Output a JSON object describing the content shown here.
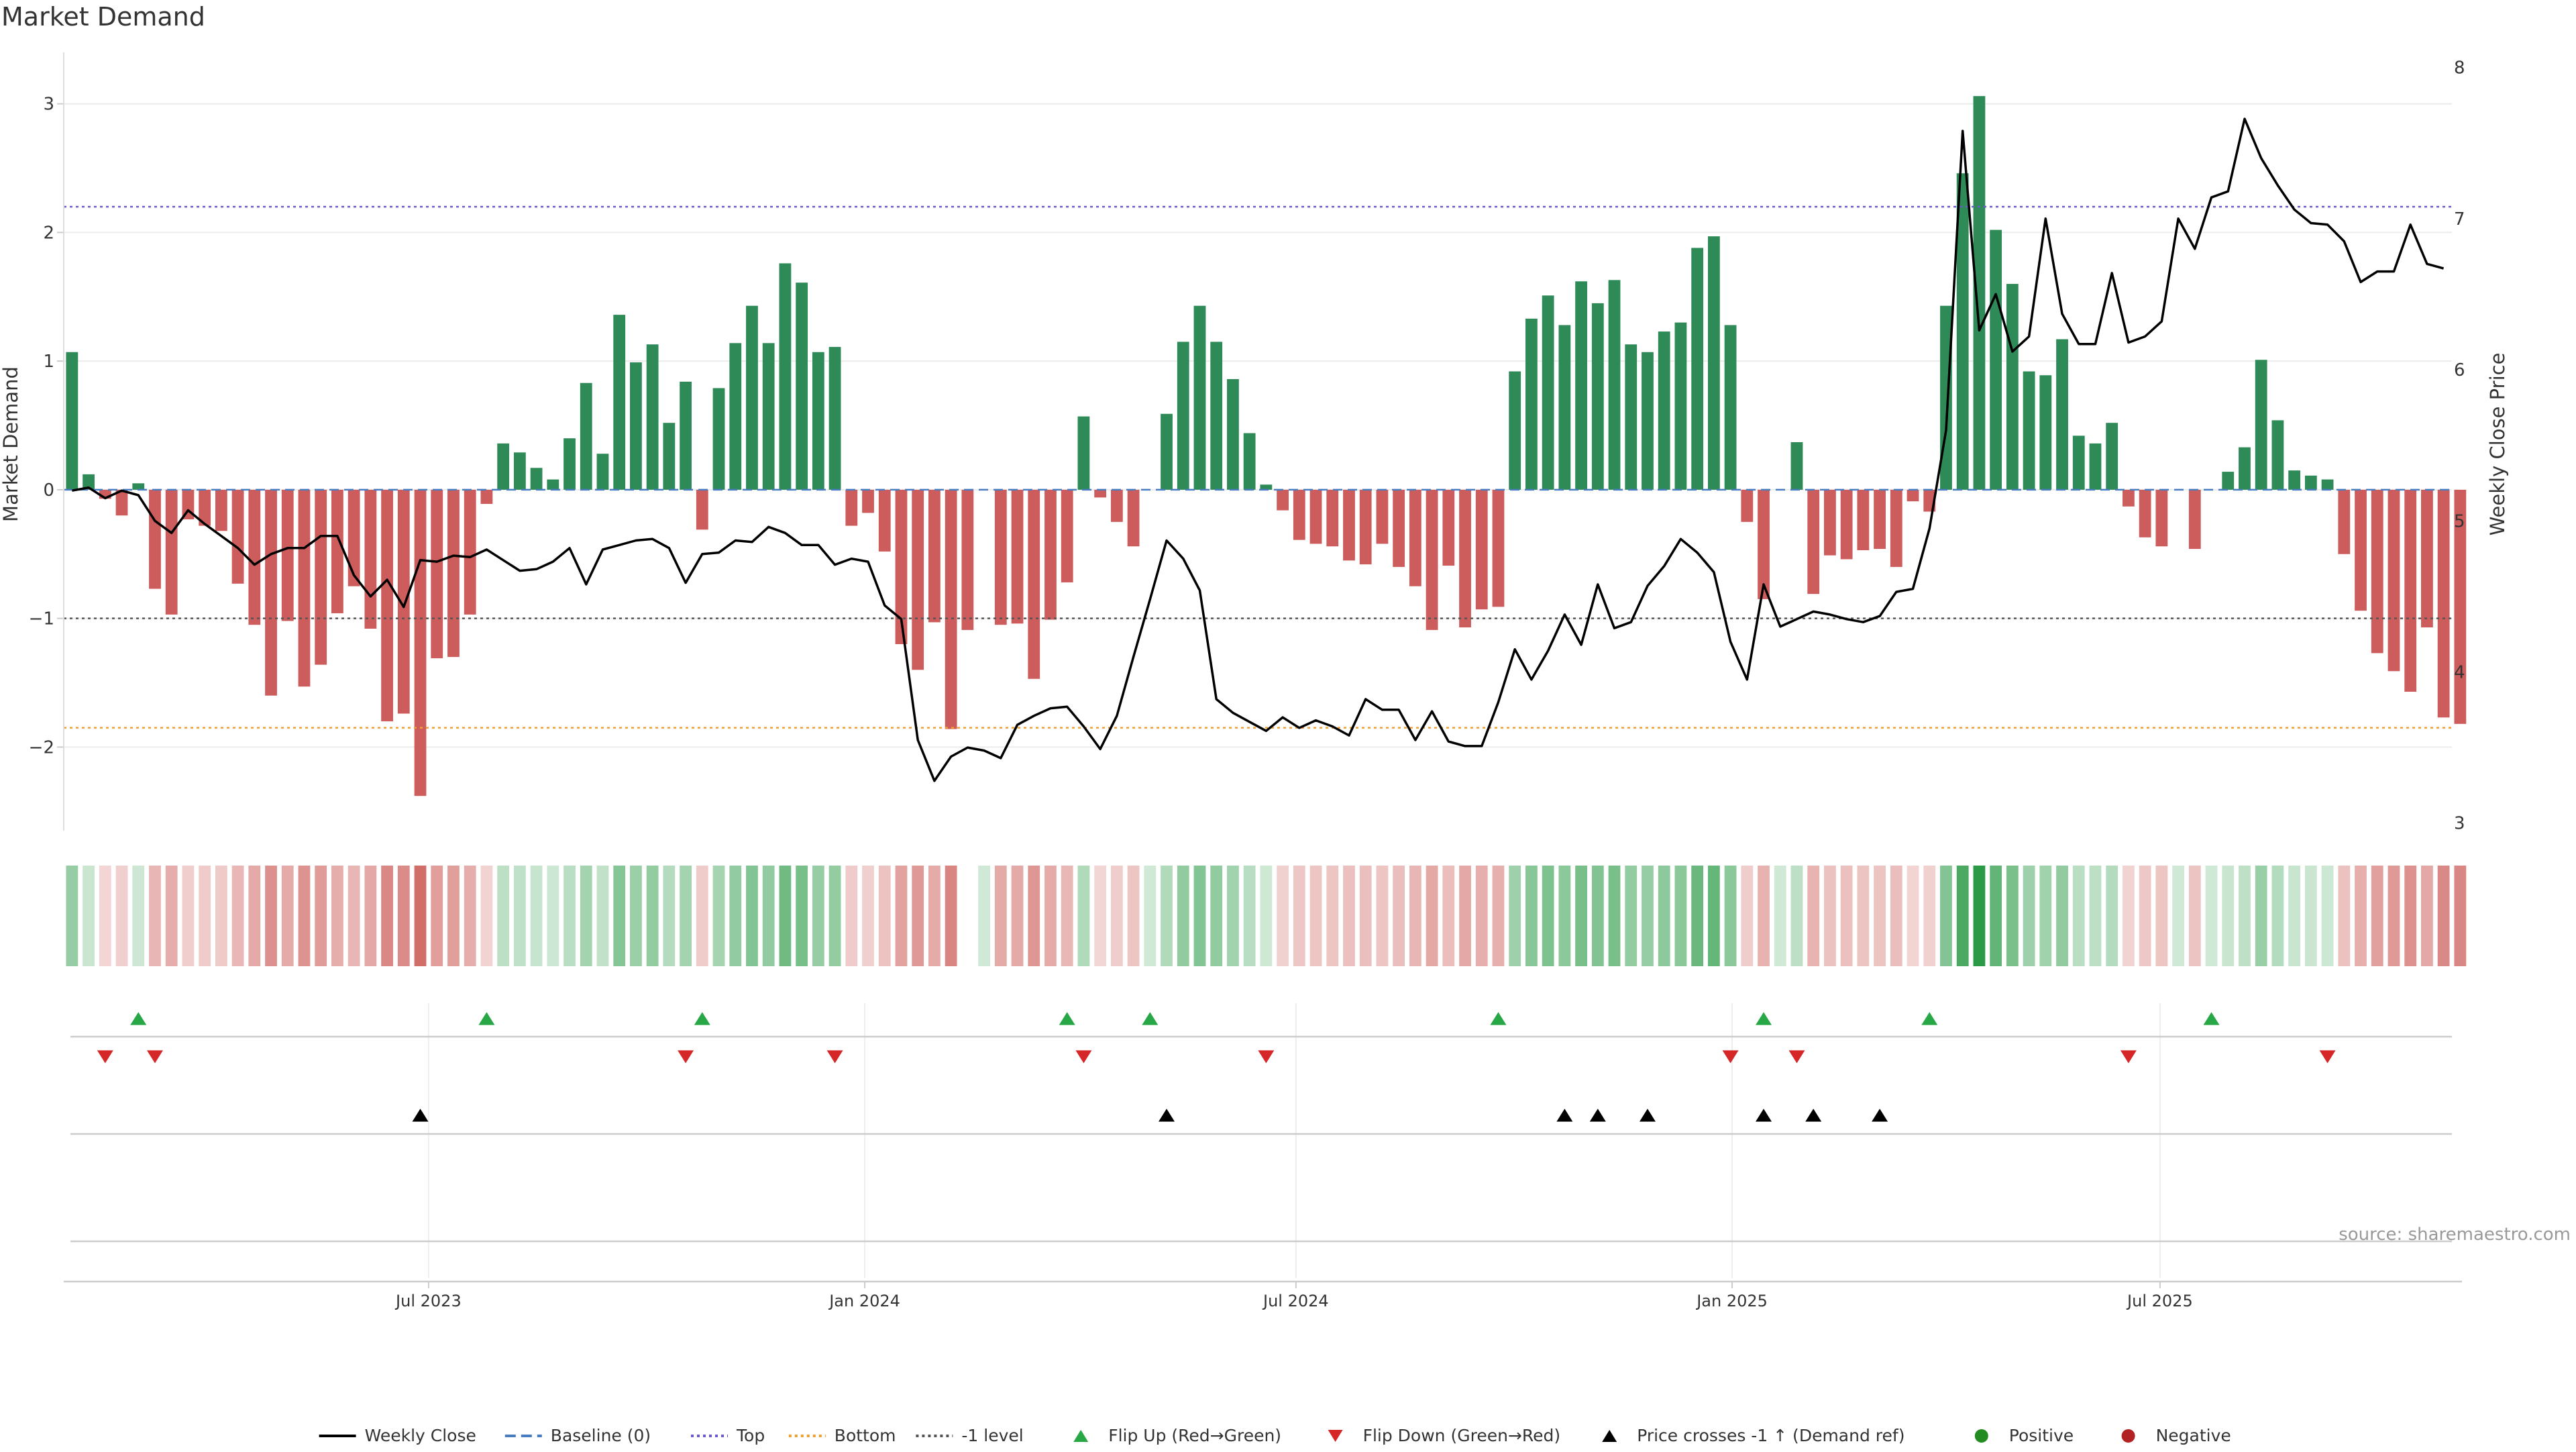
{
  "chart_data": {
    "type": "bar+line",
    "title": "Market Demand",
    "ylabel_left": "Market Demand",
    "ylabel_right": "Weekly Close Price",
    "ylim_left": [
      -2.65,
      3.4
    ],
    "ylim_right": [
      2.95,
      8.1
    ],
    "yticks_left": [
      {
        "value": -2,
        "label": "−2"
      },
      {
        "value": -1,
        "label": "−1"
      },
      {
        "value": 0,
        "label": "0"
      },
      {
        "value": 1,
        "label": "1"
      },
      {
        "value": 2,
        "label": "2"
      },
      {
        "value": 3,
        "label": "3"
      }
    ],
    "yticks_right": [
      {
        "value": 3,
        "label": "3"
      },
      {
        "value": 4,
        "label": "4"
      },
      {
        "value": 5,
        "label": "5"
      },
      {
        "value": 6,
        "label": "6"
      },
      {
        "value": 7,
        "label": "7"
      },
      {
        "value": 8,
        "label": "8"
      }
    ],
    "x_range_weeks": [
      0,
      144
    ],
    "x_ticks": [
      {
        "week": 22,
        "label": "Jul 2023"
      },
      {
        "week": 48.3,
        "label": "Jan 2024"
      },
      {
        "week": 74.3,
        "label": "Jul 2024"
      },
      {
        "week": 100.6,
        "label": "Jan 2025"
      },
      {
        "week": 126.4,
        "label": "Jul 2025"
      }
    ],
    "reference_lines": [
      {
        "name": "Top",
        "value": 2.2,
        "color": "#6a5acd"
      },
      {
        "name": "Bottom",
        "value": -1.85,
        "color": "#f0a030"
      },
      {
        "name": "-1 level",
        "value": -1.0,
        "color": "#555555"
      },
      {
        "name": "Baseline (0)",
        "value": 0,
        "color": "#4a7cc0"
      }
    ],
    "demand": [
      1.07,
      0.12,
      -0.07,
      -0.2,
      0.05,
      -0.77,
      -0.97,
      -0.23,
      -0.28,
      -0.32,
      -0.73,
      -1.05,
      -1.6,
      -1.02,
      -1.53,
      -1.36,
      -0.96,
      -0.75,
      -1.08,
      -1.8,
      -1.74,
      -2.38,
      -1.31,
      -1.3,
      -0.97,
      -0.11,
      0.36,
      0.29,
      0.17,
      0.08,
      0.4,
      0.83,
      0.28,
      1.36,
      0.99,
      1.13,
      0.52,
      0.84,
      -0.31,
      0.79,
      1.14,
      1.43,
      1.14,
      1.76,
      1.61,
      1.07,
      1.11,
      -0.28,
      -0.18,
      -0.48,
      -1.2,
      -1.4,
      -1.03,
      -1.86,
      -1.09,
      0,
      -1.05,
      -1.04,
      -1.47,
      -1.01,
      -0.72,
      0.57,
      -0.06,
      -0.25,
      -0.44,
      0,
      0.59,
      1.15,
      1.43,
      1.15,
      0.86,
      0.44,
      0.04,
      -0.16,
      -0.39,
      -0.42,
      -0.44,
      -0.55,
      -0.58,
      -0.42,
      -0.6,
      -0.75,
      -1.09,
      -0.59,
      -1.07,
      -0.93,
      -0.91,
      0.92,
      1.33,
      1.51,
      1.28,
      1.62,
      1.45,
      1.63,
      1.13,
      1.07,
      1.23,
      1.3,
      1.88,
      1.97,
      1.28,
      -0.25,
      -0.85,
      0,
      0.37,
      -0.81,
      -0.51,
      -0.54,
      -0.47,
      -0.46,
      -0.6,
      -0.09,
      -0.17,
      1.43,
      2.46,
      3.06,
      2.02,
      1.6,
      0.92,
      0.89,
      1.17,
      0.42,
      0.36,
      0.52,
      -0.13,
      -0.37,
      -0.44,
      0,
      -0.46,
      0,
      0.14,
      0.33,
      1.01,
      0.54,
      0.15,
      0.11,
      0.08,
      -0.5,
      -0.94,
      -1.27,
      -1.41,
      -1.57,
      -1.07,
      -1.77,
      -1.82
    ],
    "close": [
      5.2,
      5.22,
      5.15,
      5.2,
      5.17,
      5.0,
      4.92,
      5.07,
      4.98,
      4.9,
      4.82,
      4.71,
      4.78,
      4.82,
      4.82,
      4.9,
      4.9,
      4.64,
      4.5,
      4.61,
      4.43,
      4.74,
      4.73,
      4.77,
      4.76,
      4.81,
      4.74,
      4.67,
      4.68,
      4.73,
      4.82,
      4.58,
      4.81,
      4.84,
      4.87,
      4.88,
      4.82,
      4.59,
      4.78,
      4.79,
      4.87,
      4.86,
      4.96,
      4.92,
      4.84,
      4.84,
      4.71,
      4.75,
      4.73,
      4.44,
      4.35,
      3.55,
      3.28,
      3.44,
      3.5,
      3.48,
      3.43,
      3.65,
      3.71,
      3.76,
      3.77,
      3.64,
      3.49,
      3.71,
      4.1,
      4.48,
      4.87,
      4.75,
      4.54,
      3.82,
      3.73,
      3.67,
      3.61,
      3.7,
      3.63,
      3.68,
      3.64,
      3.58,
      3.82,
      3.75,
      3.75,
      3.55,
      3.74,
      3.54,
      3.51,
      3.51,
      3.8,
      4.15,
      3.95,
      4.14,
      4.38,
      4.18,
      4.58,
      4.29,
      4.33,
      4.57,
      4.7,
      4.88,
      4.79,
      4.66,
      4.2,
      3.95,
      4.58,
      4.3,
      4.35,
      4.4,
      4.38,
      4.35,
      4.33,
      4.37,
      4.53,
      4.55,
      4.95,
      5.6,
      7.58,
      6.26,
      6.5,
      6.12,
      6.22,
      7.0,
      6.37,
      6.17,
      6.17,
      6.64,
      6.18,
      6.22,
      6.32,
      7.0,
      6.8,
      7.14,
      7.18,
      7.66,
      7.4,
      7.22,
      7.06,
      6.97,
      6.96,
      6.85,
      6.58,
      6.65,
      6.65,
      6.96,
      6.7,
      6.67
    ],
    "flip_up_weeks": [
      4,
      25,
      38,
      60,
      65,
      86,
      102,
      112,
      129
    ],
    "flip_down_weeks": [
      2,
      5,
      37,
      46,
      61,
      72,
      100,
      104,
      124,
      136
    ],
    "price_cross_weeks": [
      21,
      66,
      90,
      92,
      95,
      102,
      105,
      109
    ],
    "heat_gaps": [
      54
    ],
    "colors": {
      "positive_bar": "#2e8b57",
      "negative_bar": "#cd5c5c",
      "close_line": "#000000",
      "flip_up": "#27a745",
      "flip_down": "#d62728",
      "price_cross": "#000000",
      "positive_dot": "#228b22",
      "negative_dot": "#b22222"
    },
    "legend": [
      {
        "label": "Weekly Close",
        "kind": "line-solid",
        "color": "#000000"
      },
      {
        "label": "Baseline (0)",
        "kind": "line-dash",
        "color": "#4a7cc0"
      },
      {
        "label": "Top",
        "kind": "line-dot",
        "color": "#6a5acd"
      },
      {
        "label": "Bottom",
        "kind": "line-dot",
        "color": "#f0a030"
      },
      {
        "label": "-1 level",
        "kind": "line-dot",
        "color": "#555555"
      },
      {
        "label": "Flip Up (Red→Green)",
        "kind": "tri-up",
        "color": "#27a745"
      },
      {
        "label": "Flip Down (Green→Red)",
        "kind": "tri-down",
        "color": "#d62728"
      },
      {
        "label": "Price crosses -1 ↑ (Demand ref)",
        "kind": "tri-up",
        "color": "#000000"
      },
      {
        "label": "Positive",
        "kind": "dot",
        "color": "#228b22"
      },
      {
        "label": "Negative",
        "kind": "dot",
        "color": "#b22222"
      }
    ],
    "source_note": "source: sharemaestro.com"
  }
}
